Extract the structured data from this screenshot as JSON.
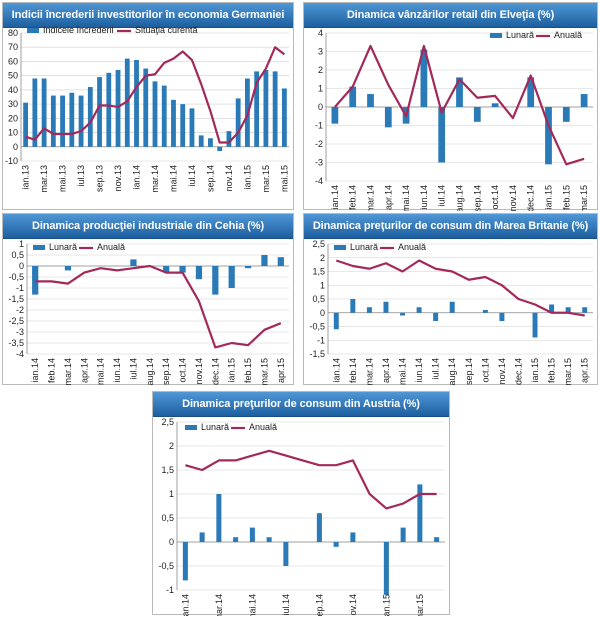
{
  "colors": {
    "bar": "#2a7ab8",
    "line": "#a3295a",
    "title_bg": "#2b6fb4",
    "grid": "#cfcfcf"
  },
  "chart_data": [
    {
      "id": "c1",
      "type": "bar+line",
      "title": "Indicii încrederii investitorilor în economia Germaniei",
      "ylim": [
        -10,
        80
      ],
      "ticks": [
        -10,
        0,
        10,
        20,
        30,
        40,
        50,
        60,
        70,
        80
      ],
      "tick_labels": [
        "-10",
        "0",
        "10",
        "20",
        "30",
        "40",
        "50",
        "60",
        "70",
        "80"
      ],
      "grid": true,
      "legend_position": "top",
      "x": [
        "ian.13",
        "feb.13",
        "mar.13",
        "apr.13",
        "mai.13",
        "iun.13",
        "iul.13",
        "aug.13",
        "sep.13",
        "oct.13",
        "nov.13",
        "dec.13",
        "ian.14",
        "feb.14",
        "mar.14",
        "apr.14",
        "mai.14",
        "iun.14",
        "iul.14",
        "aug.14",
        "sep.14",
        "oct.14",
        "nov.14",
        "dec.14",
        "ian.15",
        "feb.15",
        "mar.15",
        "apr.15",
        "mai.15"
      ],
      "x_labels": [
        "ian.13",
        "mar.13",
        "mai.13",
        "iul.13",
        "sep.13",
        "nov.13",
        "ian.14",
        "mar.14",
        "mai.14",
        "iul.14",
        "sep.14",
        "nov.14",
        "ian.15",
        "mar.15",
        "mai.15"
      ],
      "series": [
        {
          "name": "Indicele încrederii",
          "kind": "bar",
          "values": [
            31,
            48,
            48,
            36,
            36,
            38,
            36,
            42,
            49,
            52,
            54,
            62,
            61,
            55,
            46,
            43,
            33,
            30,
            27,
            8,
            6,
            -3,
            11,
            34,
            48,
            53,
            54,
            53,
            41
          ]
        },
        {
          "name": "Situaţia curentă",
          "kind": "line",
          "values": [
            7,
            5,
            13,
            9,
            9,
            9,
            11,
            17,
            29,
            29,
            28,
            32,
            42,
            50,
            51,
            59,
            62,
            67,
            61,
            44,
            25,
            3,
            3,
            10,
            22,
            45,
            55,
            70,
            65
          ]
        }
      ]
    },
    {
      "id": "c2",
      "type": "bar+line",
      "title": "Dinamica vânzărilor retail din Elveţia (%)",
      "ylim": [
        -4,
        4
      ],
      "ticks": [
        -4,
        -3,
        -2,
        -1,
        0,
        1,
        2,
        3,
        4
      ],
      "tick_labels": [
        "-4",
        "-3",
        "-2",
        "-1",
        "0",
        "1",
        "2",
        "3",
        "4"
      ],
      "grid": true,
      "legend_position": "top-right",
      "x": [
        "ian.14",
        "feb.14",
        "mar.14",
        "apr.14",
        "mai.14",
        "iun.14",
        "iul.14",
        "aug.14",
        "sep.14",
        "oct.14",
        "nov.14",
        "dec.14",
        "ian.15",
        "feb.15",
        "mar.15"
      ],
      "x_labels": [
        "ian.14",
        "feb.14",
        "mar.14",
        "apr.14",
        "mai.14",
        "iun.14",
        "iul.14",
        "aug.14",
        "sep.14",
        "oct.14",
        "nov.14",
        "dec.14",
        "ian.15",
        "feb.15",
        "mar.15"
      ],
      "series": [
        {
          "name": "Lunară",
          "kind": "bar",
          "values": [
            -0.9,
            1.1,
            0.7,
            -1.1,
            -0.9,
            3.1,
            -3.0,
            1.6,
            -0.8,
            0.2,
            0.0,
            1.6,
            -3.1,
            -0.8,
            0.7
          ]
        },
        {
          "name": "Anuală",
          "kind": "line",
          "values": [
            0.0,
            1.1,
            3.3,
            1.2,
            -0.5,
            3.3,
            -0.3,
            1.5,
            0.5,
            0.6,
            -0.6,
            1.7,
            -1.0,
            -3.1,
            -2.8
          ]
        }
      ]
    },
    {
      "id": "c3",
      "type": "bar+line",
      "title": "Dinamica producţiei industriale din Cehia (%)",
      "ylim": [
        -4,
        1
      ],
      "ticks": [
        -4,
        -3.5,
        -3,
        -2.5,
        -2,
        -1.5,
        -1,
        -0.5,
        0,
        0.5,
        1
      ],
      "tick_labels": [
        "-4",
        "-3,5",
        "-3",
        "-2,5",
        "-2",
        "-1,5",
        "-1",
        "-0,5",
        "0",
        "0,5",
        "1"
      ],
      "grid": true,
      "legend_position": "top-left",
      "x": [
        "ian.14",
        "feb.14",
        "mar.14",
        "apr.14",
        "mai.14",
        "iun.14",
        "iul.14",
        "aug.14",
        "sep.14",
        "oct.14",
        "nov.14",
        "dec.14",
        "ian.15",
        "feb.15",
        "mar.15",
        "apr.15"
      ],
      "x_labels": [
        "ian.14",
        "feb.14",
        "mar.14",
        "apr.14",
        "mai.14",
        "iun.14",
        "iul.14",
        "aug.14",
        "sep.14",
        "oct.14",
        "nov.14",
        "dec.14",
        "ian.15",
        "feb.15",
        "mar.15",
        "apr.15"
      ],
      "series": [
        {
          "name": "Lunară",
          "kind": "bar",
          "values": [
            -1.3,
            0.0,
            -0.2,
            0.0,
            0.0,
            0.0,
            0.3,
            0.0,
            -0.3,
            -0.3,
            -0.6,
            -1.3,
            -1.0,
            -0.1,
            0.5,
            0.4
          ]
        },
        {
          "name": "Anuală",
          "kind": "line",
          "values": [
            -0.7,
            -0.7,
            -0.8,
            -0.3,
            -0.1,
            -0.2,
            -0.1,
            0.0,
            -0.3,
            -0.3,
            -1.6,
            -3.7,
            -3.5,
            -3.6,
            -2.9,
            -2.6
          ]
        }
      ]
    },
    {
      "id": "c4",
      "type": "bar+line",
      "title": "Dinamica preţurilor de consum din Marea Britanie (%)",
      "ylim": [
        -1.5,
        2.5
      ],
      "ticks": [
        -1.5,
        -1,
        -0.5,
        0,
        0.5,
        1,
        1.5,
        2,
        2.5
      ],
      "tick_labels": [
        "-1,5",
        "-1",
        "-0,5",
        "0",
        "0,5",
        "1",
        "1,5",
        "2",
        "2,5"
      ],
      "grid": true,
      "legend_position": "top-left",
      "x": [
        "ian.14",
        "feb.14",
        "mar.14",
        "apr.14",
        "mai.14",
        "iun.14",
        "iul.14",
        "aug.14",
        "sep.14",
        "oct.14",
        "nov.14",
        "dec.14",
        "ian.15",
        "feb.15",
        "mar.15",
        "apr.15"
      ],
      "x_labels": [
        "ian.14",
        "feb.14",
        "mar.14",
        "apr.14",
        "mai.14",
        "iun.14",
        "iul.14",
        "aug.14",
        "sep.14",
        "oct.14",
        "nov.14",
        "dec.14",
        "ian.15",
        "feb.15",
        "mar.15",
        "apr.15"
      ],
      "series": [
        {
          "name": "Lunară",
          "kind": "bar",
          "values": [
            -0.6,
            0.5,
            0.2,
            0.4,
            -0.1,
            0.2,
            -0.3,
            0.4,
            0.0,
            0.1,
            -0.3,
            0.0,
            -0.9,
            0.3,
            0.2,
            0.2
          ]
        },
        {
          "name": "Anuală",
          "kind": "line",
          "values": [
            1.9,
            1.7,
            1.6,
            1.8,
            1.5,
            1.9,
            1.6,
            1.5,
            1.2,
            1.3,
            1.0,
            0.5,
            0.3,
            0.0,
            0.0,
            -0.1
          ]
        }
      ]
    },
    {
      "id": "c5",
      "type": "bar+line",
      "title": "Dinamica preţurilor de consum din Austria (%)",
      "ylim": [
        -1,
        2.5
      ],
      "ticks": [
        -1,
        -0.5,
        0,
        0.5,
        1,
        1.5,
        2,
        2.5
      ],
      "tick_labels": [
        "-1",
        "-0,5",
        "0",
        "0,5",
        "1",
        "1,5",
        "2",
        "2,5"
      ],
      "grid": true,
      "legend_position": "top-left",
      "x": [
        "ian.14",
        "feb.14",
        "mar.14",
        "apr.14",
        "mai.14",
        "iun.14",
        "iul.14",
        "aug.14",
        "sep.14",
        "oct.14",
        "nov.14",
        "dec.14",
        "ian.15",
        "feb.15",
        "mar.15",
        "apr.15"
      ],
      "x_labels": [
        "ian.14",
        "mar.14",
        "mai.14",
        "iul.14",
        "sep.14",
        "nov.14",
        "ian.15",
        "mar.15"
      ],
      "series": [
        {
          "name": "Lunară",
          "kind": "bar",
          "values": [
            -0.8,
            0.2,
            1.0,
            0.1,
            0.3,
            0.1,
            -0.5,
            0.0,
            0.6,
            -0.1,
            0.2,
            0.0,
            -1.1,
            0.3,
            1.2,
            0.1
          ]
        },
        {
          "name": "Anuală",
          "kind": "line",
          "values": [
            1.6,
            1.5,
            1.7,
            1.7,
            1.8,
            1.9,
            1.8,
            1.7,
            1.6,
            1.6,
            1.7,
            1.0,
            0.7,
            0.8,
            1.0,
            1.0
          ]
        }
      ]
    }
  ]
}
